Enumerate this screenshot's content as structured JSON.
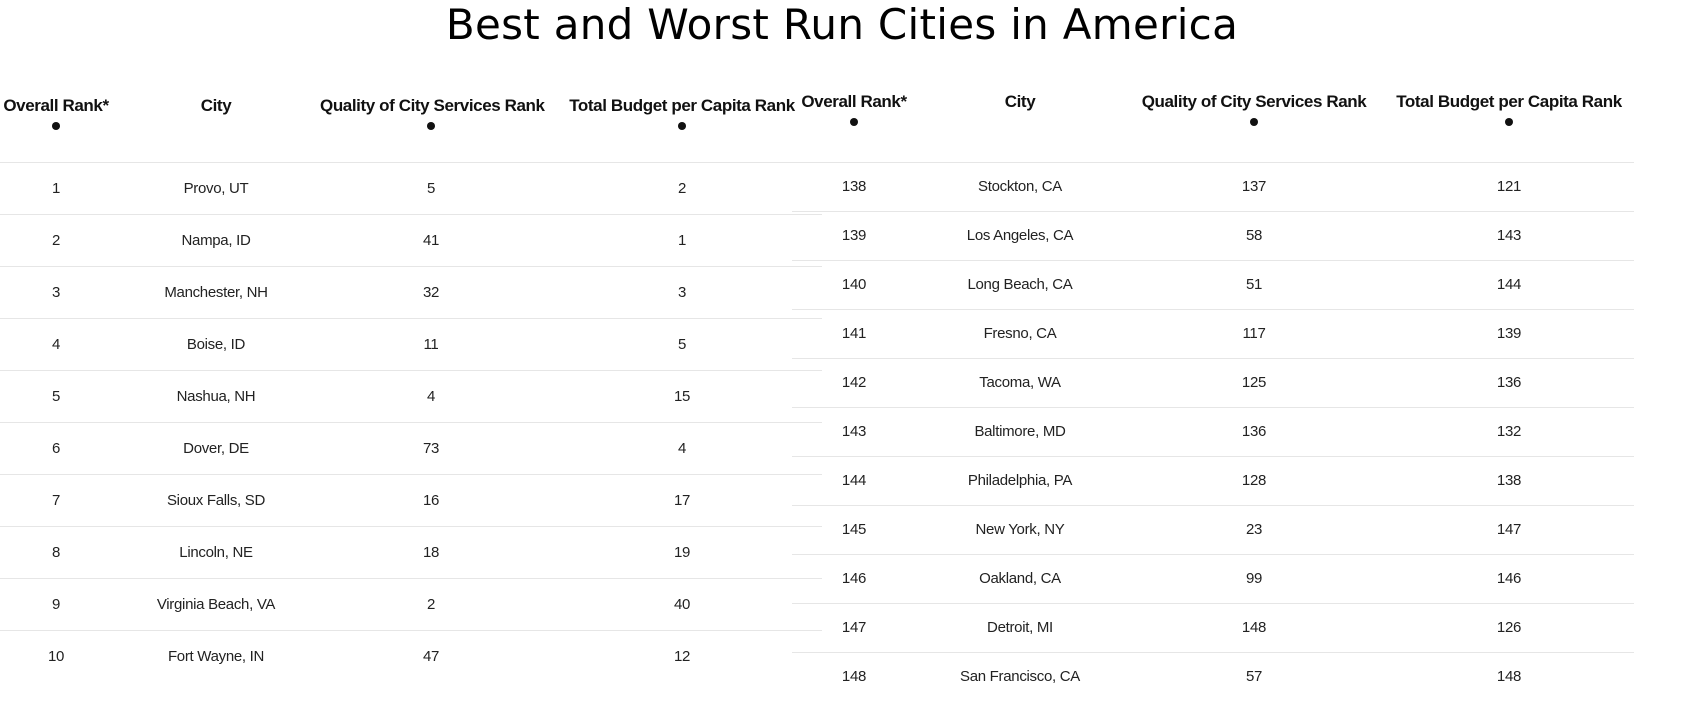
{
  "title": "Best and Worst Run Cities in America",
  "colors": {
    "text": "#1a1a1a",
    "row_divider": "#e6e6e6",
    "background": "#ffffff"
  },
  "best_table": {
    "headers": {
      "overall_rank": "Overall Rank*",
      "city": "City",
      "quality_rank": "Quality of City Services Rank",
      "budget_rank": "Total Budget per Capita Rank"
    },
    "rows": [
      {
        "overall_rank": "1",
        "city": "Provo, UT",
        "quality_rank": "5",
        "budget_rank": "2"
      },
      {
        "overall_rank": "2",
        "city": "Nampa, ID",
        "quality_rank": "41",
        "budget_rank": "1"
      },
      {
        "overall_rank": "3",
        "city": "Manchester, NH",
        "quality_rank": "32",
        "budget_rank": "3"
      },
      {
        "overall_rank": "4",
        "city": "Boise, ID",
        "quality_rank": "11",
        "budget_rank": "5"
      },
      {
        "overall_rank": "5",
        "city": "Nashua, NH",
        "quality_rank": "4",
        "budget_rank": "15"
      },
      {
        "overall_rank": "6",
        "city": "Dover, DE",
        "quality_rank": "73",
        "budget_rank": "4"
      },
      {
        "overall_rank": "7",
        "city": "Sioux Falls, SD",
        "quality_rank": "16",
        "budget_rank": "17"
      },
      {
        "overall_rank": "8",
        "city": "Lincoln, NE",
        "quality_rank": "18",
        "budget_rank": "19"
      },
      {
        "overall_rank": "9",
        "city": "Virginia Beach, VA",
        "quality_rank": "2",
        "budget_rank": "40"
      },
      {
        "overall_rank": "10",
        "city": "Fort Wayne, IN",
        "quality_rank": "47",
        "budget_rank": "12"
      }
    ]
  },
  "worst_table": {
    "headers": {
      "overall_rank": "Overall Rank*",
      "city": "City",
      "quality_rank": "Quality of City Services Rank",
      "budget_rank": "Total Budget per Capita Rank"
    },
    "rows": [
      {
        "overall_rank": "138",
        "city": "Stockton, CA",
        "quality_rank": "137",
        "budget_rank": "121"
      },
      {
        "overall_rank": "139",
        "city": "Los Angeles, CA",
        "quality_rank": "58",
        "budget_rank": "143"
      },
      {
        "overall_rank": "140",
        "city": "Long Beach, CA",
        "quality_rank": "51",
        "budget_rank": "144"
      },
      {
        "overall_rank": "141",
        "city": "Fresno, CA",
        "quality_rank": "117",
        "budget_rank": "139"
      },
      {
        "overall_rank": "142",
        "city": "Tacoma, WA",
        "quality_rank": "125",
        "budget_rank": "136"
      },
      {
        "overall_rank": "143",
        "city": "Baltimore, MD",
        "quality_rank": "136",
        "budget_rank": "132"
      },
      {
        "overall_rank": "144",
        "city": "Philadelphia, PA",
        "quality_rank": "128",
        "budget_rank": "138"
      },
      {
        "overall_rank": "145",
        "city": "New York, NY",
        "quality_rank": "23",
        "budget_rank": "147"
      },
      {
        "overall_rank": "146",
        "city": "Oakland, CA",
        "quality_rank": "99",
        "budget_rank": "146"
      },
      {
        "overall_rank": "147",
        "city": "Detroit, MI",
        "quality_rank": "148",
        "budget_rank": "126"
      },
      {
        "overall_rank": "148",
        "city": "San Francisco, CA",
        "quality_rank": "57",
        "budget_rank": "148"
      }
    ]
  }
}
